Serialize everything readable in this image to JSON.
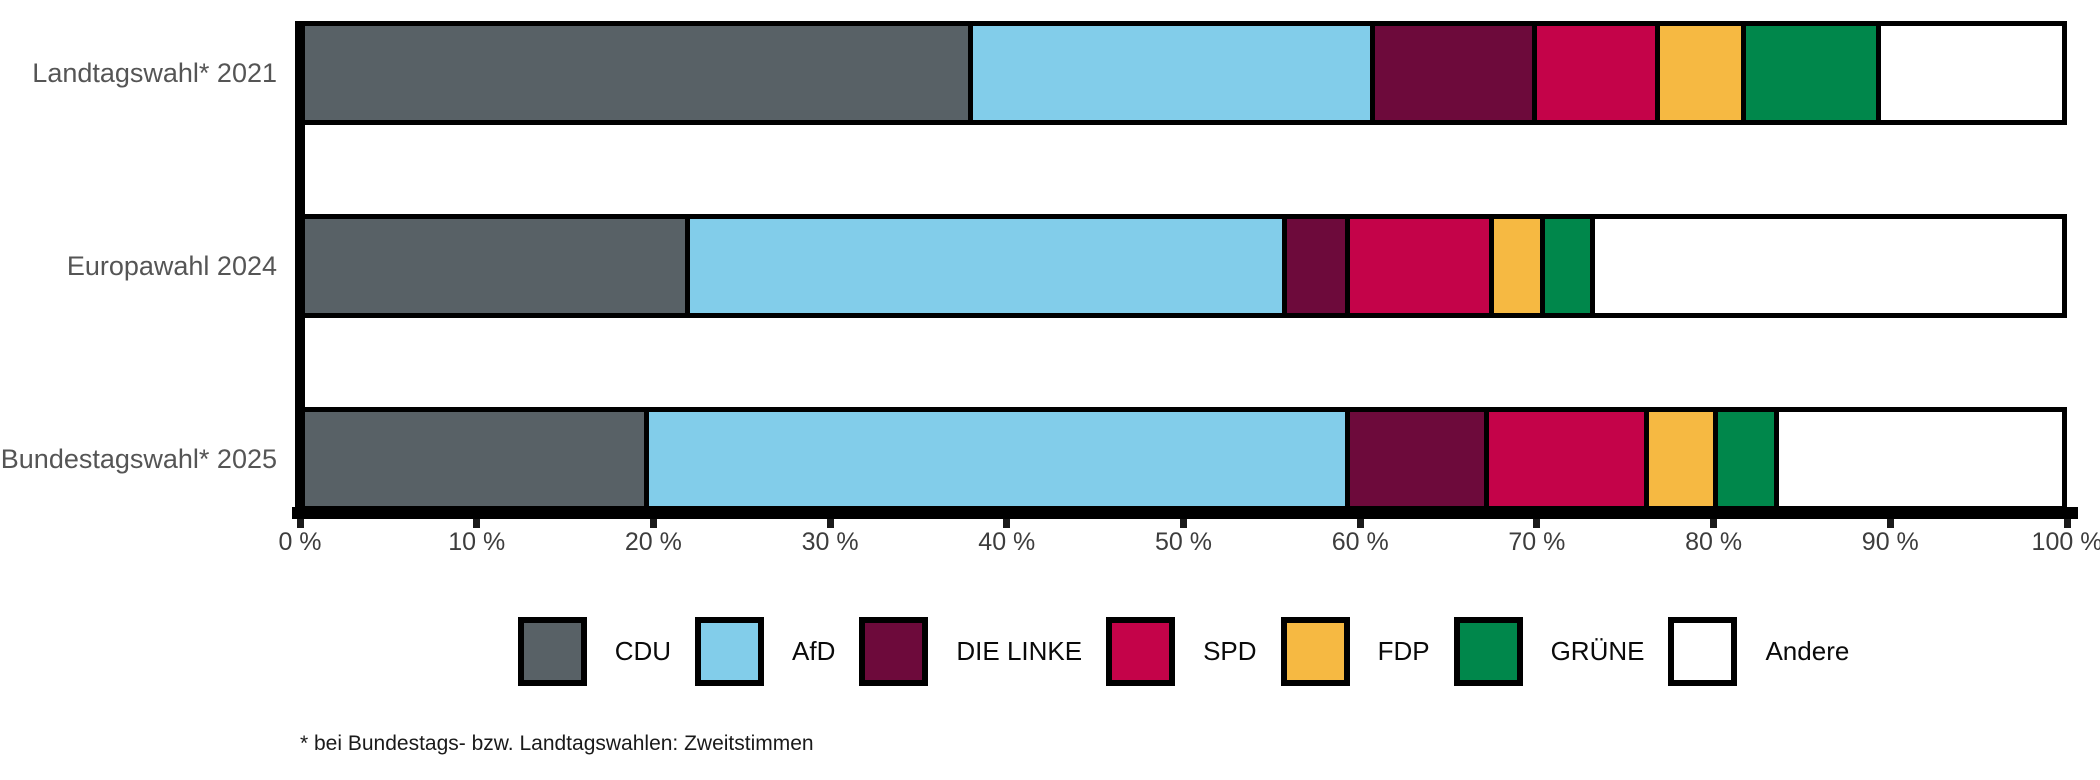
{
  "chart_data": {
    "type": "bar",
    "orientation": "horizontal",
    "stacked": true,
    "title": "",
    "xlabel": "",
    "ylabel": "",
    "categories": [
      "Landtagswahl* 2021",
      "Europawahl 2024",
      "Bundestagswahl* 2025"
    ],
    "series": [
      {
        "name": "CDU",
        "color": "#586166",
        "values": [
          38.0,
          21.9,
          19.6
        ]
      },
      {
        "name": "AfD",
        "color": "#82CDEA",
        "values": [
          22.9,
          34.0,
          39.9
        ]
      },
      {
        "name": "DIE LINKE",
        "color": "#6D0A3B",
        "values": [
          9.2,
          3.6,
          7.9
        ]
      },
      {
        "name": "SPD",
        "color": "#C40349",
        "values": [
          7.0,
          8.2,
          9.1
        ]
      },
      {
        "name": "FDP",
        "color": "#F6B942",
        "values": [
          4.9,
          2.9,
          3.9
        ]
      },
      {
        "name": "GRÜNE",
        "color": "#00874B",
        "values": [
          7.7,
          2.8,
          3.5
        ]
      },
      {
        "name": "Andere",
        "color": "#FFFFFF",
        "values": [
          10.3,
          26.6,
          16.1
        ]
      }
    ],
    "x_axis": {
      "min": 0,
      "max": 100,
      "tick_step": 10,
      "tick_labels": [
        "0 %",
        "10 %",
        "20 %",
        "30 %",
        "40 %",
        "50 %",
        "60 %",
        "70 %",
        "80 %",
        "90 %",
        "100 %"
      ]
    },
    "legend": {
      "position": "bottom",
      "entries": [
        "CDU",
        "AfD",
        "DIE LINKE",
        "SPD",
        "FDP",
        "GRÜNE",
        "Andere"
      ]
    },
    "grid": false,
    "bar_border_color": "#000000",
    "axis_color": "#000000"
  },
  "footnote": "* bei Bundestags- bzw. Landtagswahlen: Zweitstimmen"
}
